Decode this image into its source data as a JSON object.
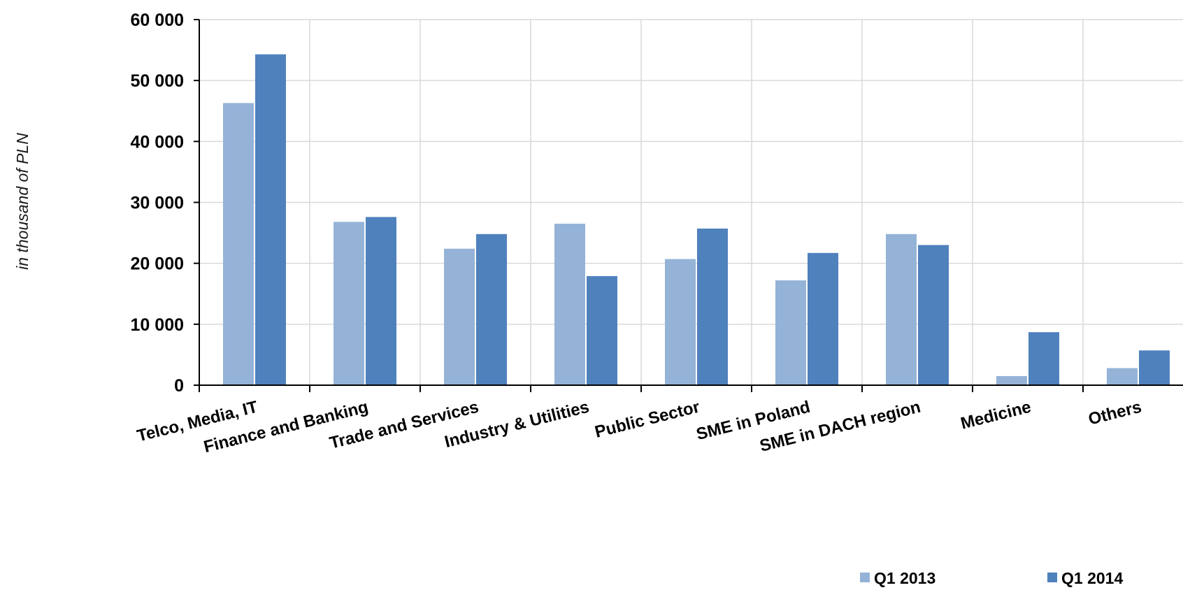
{
  "chart_data": {
    "type": "bar",
    "title": "",
    "xlabel": "",
    "ylabel": "in thousand of PLN",
    "categories": [
      "Telco, Media, IT",
      "Finance and Banking",
      "Trade and Services",
      "Industry & Utilities",
      "Public Sector",
      "SME in Poland",
      "SME in DACH region",
      "Medicine",
      "Others"
    ],
    "series": [
      {
        "name": "Q1 2013",
        "color": "#95b3d7",
        "values": [
          46300,
          26800,
          22400,
          26500,
          20700,
          17200,
          24800,
          1500,
          2800
        ]
      },
      {
        "name": "Q1 2014",
        "color": "#4f81bd",
        "values": [
          54300,
          27600,
          24800,
          17900,
          25700,
          21700,
          23000,
          8700,
          5700
        ]
      }
    ],
    "ylim": [
      0,
      60000
    ],
    "yticks": [
      0,
      10000,
      20000,
      30000,
      40000,
      50000,
      60000
    ],
    "ytick_labels": [
      "0",
      "10 000",
      "20 000",
      "30 000",
      "40 000",
      "50 000",
      "60 000"
    ],
    "grid": true,
    "legend": "bottom-right"
  }
}
